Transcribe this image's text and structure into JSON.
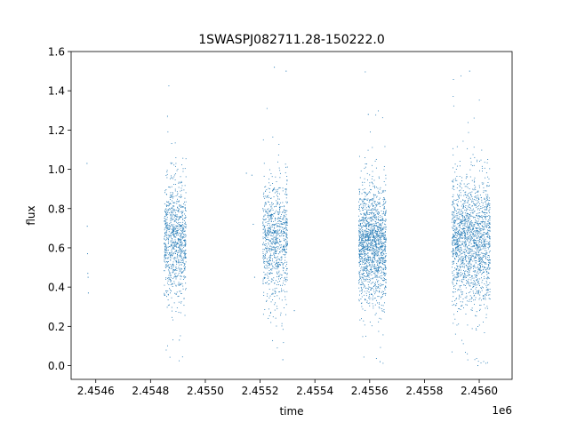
{
  "chart_data": {
    "type": "scatter",
    "title": "1SWASPJ082711.28-150222.0",
    "xlabel": "time",
    "ylabel": "flux",
    "x_offset_label": "1e6",
    "x_unit_multiplier": 1000000,
    "xlim": [
      2.45451,
      2.45612
    ],
    "ylim": [
      -0.07,
      1.6
    ],
    "x_ticks": [
      {
        "value": 2.4546,
        "label": "2.4546"
      },
      {
        "value": 2.4548,
        "label": "2.4548"
      },
      {
        "value": 2.455,
        "label": "2.4550"
      },
      {
        "value": 2.4552,
        "label": "2.4552"
      },
      {
        "value": 2.4554,
        "label": "2.4554"
      },
      {
        "value": 2.4556,
        "label": "2.4556"
      },
      {
        "value": 2.4558,
        "label": "2.4558"
      },
      {
        "value": 2.456,
        "label": "2.4560"
      }
    ],
    "y_ticks": [
      {
        "value": 0.0,
        "label": "0.0"
      },
      {
        "value": 0.2,
        "label": "0.2"
      },
      {
        "value": 0.4,
        "label": "0.4"
      },
      {
        "value": 0.6,
        "label": "0.6"
      },
      {
        "value": 0.8,
        "label": "0.8"
      },
      {
        "value": 1.0,
        "label": "1.0"
      },
      {
        "value": 1.2,
        "label": "1.2"
      },
      {
        "value": 1.4,
        "label": "1.4"
      },
      {
        "value": 1.6,
        "label": "1.6"
      }
    ],
    "grid": false,
    "legend": "none",
    "marker_color": "#1f77b4",
    "series": [
      {
        "x": [
          2.454568,
          2.454569,
          2.45457,
          2.454571,
          2.454572,
          2.454573,
          2.45485,
          2.45487,
          2.45489,
          2.45491,
          2.45493,
          2.454862,
          2.454905,
          2.45515,
          2.45517,
          2.455175,
          2.45518,
          2.45522,
          2.45524,
          2.45526,
          2.45528,
          2.4553,
          2.455252,
          2.455283,
          2.455295,
          2.455325,
          2.45557,
          2.45559,
          2.45561,
          2.45563,
          2.45565,
          2.455595,
          2.455638,
          2.4559,
          2.45592,
          2.45594,
          2.45596,
          2.45598,
          2.456,
          2.45602,
          2.455965,
          2.455995
        ],
        "y": [
          1.03,
          0.71,
          0.57,
          0.47,
          0.45,
          0.37,
          0.62,
          0.66,
          0.58,
          0.71,
          0.55,
          1.27,
          0.13,
          0.98,
          0.97,
          0.72,
          0.45,
          0.6,
          0.68,
          0.55,
          0.72,
          0.62,
          1.52,
          0.03,
          1.5,
          0.28,
          0.58,
          0.66,
          0.62,
          0.7,
          0.55,
          1.28,
          0.02,
          0.58,
          0.66,
          0.62,
          0.7,
          0.61,
          0.55,
          0.64,
          1.5,
          0.0
        ]
      }
    ],
    "clusters": [
      {
        "x_start": 2.45485,
        "x_end": 2.45493,
        "y_center": 0.64,
        "y_spread": 0.15,
        "y_min": 0.0,
        "y_max": 1.43,
        "count": 900
      },
      {
        "x_start": 2.45521,
        "x_end": 2.4553,
        "y_center": 0.63,
        "y_spread": 0.16,
        "y_min": 0.0,
        "y_max": 1.53,
        "count": 850
      },
      {
        "x_start": 2.45556,
        "x_end": 2.45566,
        "y_center": 0.62,
        "y_spread": 0.15,
        "y_min": 0.0,
        "y_max": 1.52,
        "count": 1500
      },
      {
        "x_start": 2.4559,
        "x_end": 2.45604,
        "y_center": 0.63,
        "y_spread": 0.16,
        "y_min": 0.0,
        "y_max": 1.5,
        "count": 1700
      }
    ]
  }
}
